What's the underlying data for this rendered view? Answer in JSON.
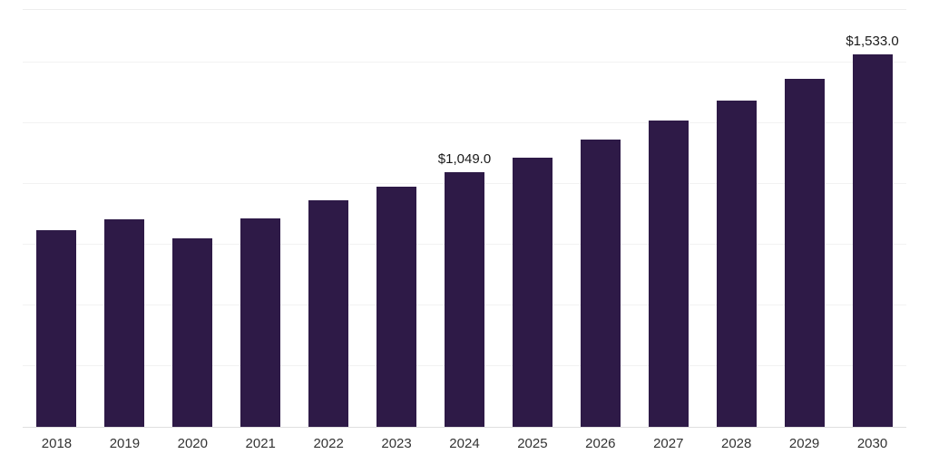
{
  "chart_data": {
    "type": "bar",
    "title": "",
    "xlabel": "",
    "ylabel": "",
    "categories": [
      "2018",
      "2019",
      "2020",
      "2021",
      "2022",
      "2023",
      "2024",
      "2025",
      "2026",
      "2027",
      "2028",
      "2029",
      "2030"
    ],
    "values": [
      810,
      855,
      775,
      860,
      935,
      990,
      1049,
      1110,
      1185,
      1260,
      1345,
      1435,
      1533
    ],
    "ylim": [
      0,
      1717
    ],
    "grid": {
      "show": true,
      "interval": 250
    },
    "legend": {
      "show": false
    },
    "bar_color": "#2e1a47",
    "gridline_color": "#f2f2f2",
    "axis_line_color": "#e0e0e0",
    "label_color": "#1a1a1a",
    "tick_color": "#333333",
    "data_labels": [
      {
        "category": "2024",
        "text": "$1,049.0"
      },
      {
        "category": "2030",
        "text": "$1,533.0"
      }
    ]
  }
}
